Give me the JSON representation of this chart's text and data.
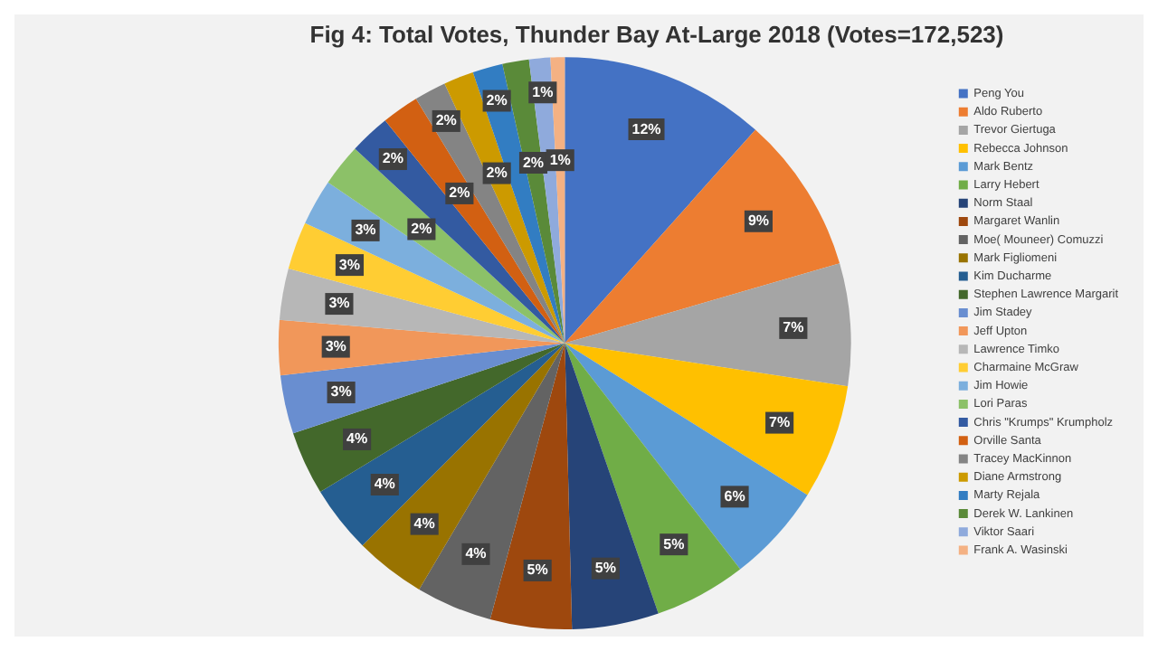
{
  "chart_data": {
    "type": "pie",
    "title": "Fig 4: Total Votes, Thunder Bay At-Large 2018 (Votes=172,523)",
    "categories": [
      "Peng You",
      "Aldo Ruberto",
      "Trevor Giertuga",
      "Rebecca Johnson",
      "Mark Bentz",
      "Larry Hebert",
      "Norm Staal",
      "Margaret Wanlin",
      "Moe( Mouneer) Comuzzi",
      "Mark Figliomeni",
      "Kim Ducharme",
      "Stephen Lawrence Margarit",
      "Jim Stadey",
      "Jeff Upton",
      "Lawrence Timko",
      "Charmaine McGraw",
      "Jim Howie",
      "Lori Paras",
      "Chris \"Krumps\" Krumpholz",
      "Orville Santa",
      "Tracey MacKinnon",
      "Diane Armstrong",
      "Marty Rejala",
      "Derek W. Lankinen",
      "Viktor Saari",
      "Frank A. Wasinski"
    ],
    "values": [
      11.6,
      8.9,
      6.9,
      6.5,
      5.6,
      5.2,
      4.9,
      4.6,
      4.3,
      4.0,
      3.8,
      3.6,
      3.3,
      3.1,
      2.9,
      2.7,
      2.6,
      2.4,
      2.3,
      2.1,
      1.8,
      1.7,
      1.7,
      1.5,
      1.2,
      0.8
    ],
    "value_labels": [
      "12%",
      "9%",
      "7%",
      "7%",
      "6%",
      "5%",
      "5%",
      "5%",
      "4%",
      "4%",
      "4%",
      "4%",
      "3%",
      "3%",
      "3%",
      "3%",
      "3%",
      "2%",
      "2%",
      "2%",
      "2%",
      "2%",
      "2%",
      "2%",
      "1%",
      "1%"
    ],
    "colors": [
      "#4472c4",
      "#ed7d31",
      "#a5a5a5",
      "#ffc000",
      "#5b9bd5",
      "#70ad47",
      "#264478",
      "#9e480e",
      "#636363",
      "#997300",
      "#255e91",
      "#43682b",
      "#698ed0",
      "#f1975a",
      "#b7b7b7",
      "#ffcd33",
      "#7cafdd",
      "#8cc168",
      "#335aa1",
      "#d26012",
      "#848484",
      "#cc9a00",
      "#327dc2",
      "#5a8a39",
      "#8faadc",
      "#f4b183"
    ],
    "legend": "right"
  }
}
